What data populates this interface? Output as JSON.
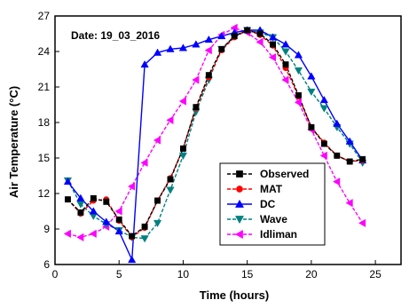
{
  "chart_data": {
    "type": "line",
    "annotation": "Date: 19_03_2016",
    "xlabel": "Time (hours)",
    "ylabel": "Air Temperature (°C)",
    "xlim": [
      0,
      27
    ],
    "ylim": [
      6,
      27
    ],
    "xticks": [
      0,
      5,
      10,
      15,
      20,
      25
    ],
    "yticks": [
      6,
      9,
      12,
      15,
      18,
      21,
      24,
      27
    ],
    "grid": false,
    "legend_position": "lower-right",
    "series": [
      {
        "name": "Observed",
        "color": "#000000",
        "marker": "square",
        "dashed": true,
        "x": [
          1,
          2,
          3,
          4,
          5,
          6,
          7,
          8,
          9,
          10,
          11,
          12,
          13,
          14,
          15,
          16,
          17,
          18,
          19,
          20,
          21,
          22,
          23,
          24
        ],
        "y": [
          11.5,
          10.4,
          11.6,
          11.3,
          9.8,
          8.4,
          9.2,
          11.4,
          13.2,
          15.8,
          19.3,
          22.0,
          24.2,
          25.3,
          25.8,
          25.5,
          24.6,
          22.9,
          20.3,
          17.6,
          16.2,
          15.2,
          14.7,
          14.9
        ]
      },
      {
        "name": "MAT",
        "color": "#ff0000",
        "marker": "circle",
        "dashed": true,
        "x": [
          1,
          2,
          3,
          4,
          5,
          6,
          7,
          8,
          9,
          10,
          11,
          12,
          13,
          14,
          15,
          16,
          17,
          18,
          19,
          20,
          21,
          22,
          23,
          24
        ],
        "y": [
          11.5,
          10.3,
          11.4,
          11.5,
          9.7,
          8.3,
          9.1,
          11.4,
          13.3,
          15.8,
          19.2,
          21.8,
          24.1,
          25.2,
          25.8,
          25.4,
          24.5,
          22.6,
          20.2,
          17.6,
          16.3,
          15.2,
          14.7,
          14.8
        ]
      },
      {
        "name": "DC",
        "color": "#0000ff",
        "marker": "triangle-up",
        "dashed": false,
        "x": [
          1,
          2,
          3,
          4,
          5,
          6,
          7,
          8,
          9,
          10,
          11,
          12,
          13,
          14,
          15,
          16,
          17,
          18,
          19,
          20,
          21,
          22,
          23,
          24
        ],
        "y": [
          13.0,
          11.6,
          10.5,
          9.6,
          8.8,
          6.4,
          22.9,
          23.9,
          24.2,
          24.3,
          24.6,
          25.0,
          25.3,
          25.6,
          25.8,
          25.8,
          25.2,
          24.6,
          23.7,
          21.9,
          19.9,
          17.9,
          16.4,
          14.8
        ]
      },
      {
        "name": "Wave",
        "color": "#008080",
        "marker": "triangle-down",
        "dashed": true,
        "x": [
          1,
          2,
          3,
          4,
          5,
          6,
          7,
          8,
          9,
          10,
          11,
          12,
          13,
          14,
          15,
          16,
          17,
          18,
          19,
          20,
          21,
          22,
          23,
          24
        ],
        "y": [
          13.1,
          11.1,
          10.1,
          9.4,
          8.9,
          8.3,
          8.2,
          9.5,
          12.3,
          15.2,
          18.9,
          21.6,
          24.2,
          25.3,
          25.8,
          25.6,
          25.2,
          24.0,
          22.4,
          20.6,
          19.2,
          17.6,
          16.2,
          14.6
        ]
      },
      {
        "name": "Idliman",
        "color": "#ff00ff",
        "marker": "triangle-left",
        "dashed": true,
        "x": [
          1,
          2,
          3,
          4,
          5,
          6,
          7,
          8,
          9,
          10,
          11,
          12,
          13,
          14,
          15,
          16,
          17,
          18,
          19,
          20,
          21,
          22,
          23,
          24
        ],
        "y": [
          8.6,
          8.3,
          8.6,
          9.2,
          10.5,
          12.6,
          14.6,
          16.5,
          18.2,
          19.8,
          21.6,
          24.1,
          25.4,
          26.0,
          25.6,
          24.8,
          23.5,
          21.6,
          19.7,
          17.4,
          15.2,
          13.0,
          11.2,
          9.5
        ]
      }
    ]
  }
}
